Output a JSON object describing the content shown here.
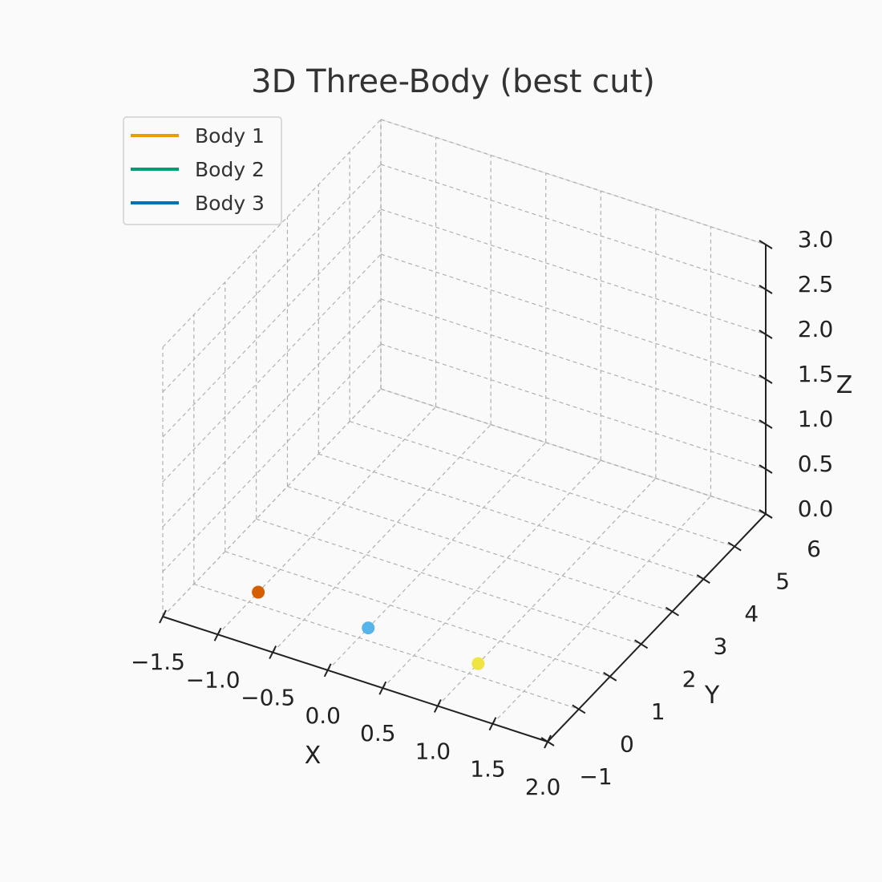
{
  "chart_data": {
    "type": "scatter",
    "projection": "3d",
    "title": "3D Three-Body (best cut)",
    "xlabel": "X",
    "ylabel": "Y",
    "zlabel": "Z",
    "grid": true,
    "legend_position": "top-left",
    "xlim": [
      -1.5,
      2.0
    ],
    "ylim": [
      -1,
      6
    ],
    "zlim": [
      0.0,
      3.0
    ],
    "xticks": [
      -1.5,
      -1.0,
      -0.5,
      0.0,
      0.5,
      1.0,
      1.5,
      2.0
    ],
    "xtick_labels": [
      "−1.5",
      "−1.0",
      "−0.5",
      "0.0",
      "0.5",
      "1.0",
      "1.5",
      "2.0"
    ],
    "yticks": [
      -1,
      0,
      1,
      2,
      3,
      4,
      5,
      6
    ],
    "ytick_labels": [
      "−1",
      "0",
      "1",
      "2",
      "3",
      "4",
      "5",
      "6"
    ],
    "zticks": [
      0.0,
      0.5,
      1.0,
      1.5,
      2.0,
      2.5,
      3.0
    ],
    "ztick_labels": [
      "0.0",
      "0.5",
      "1.0",
      "1.5",
      "2.0",
      "2.5",
      "3.0"
    ],
    "legend": [
      {
        "name": "Body 1",
        "color": "#E69F00"
      },
      {
        "name": "Body 2",
        "color": "#009E73"
      },
      {
        "name": "Body 3",
        "color": "#0072B2"
      }
    ],
    "points": [
      {
        "x": -1.0,
        "y": 0.3,
        "z": 0.0,
        "color": "#D55E00"
      },
      {
        "x": 0.0,
        "y": 0.3,
        "z": 0.0,
        "color": "#56B4E9"
      },
      {
        "x": 1.0,
        "y": 0.3,
        "z": 0.0,
        "color": "#F0E442"
      }
    ]
  }
}
